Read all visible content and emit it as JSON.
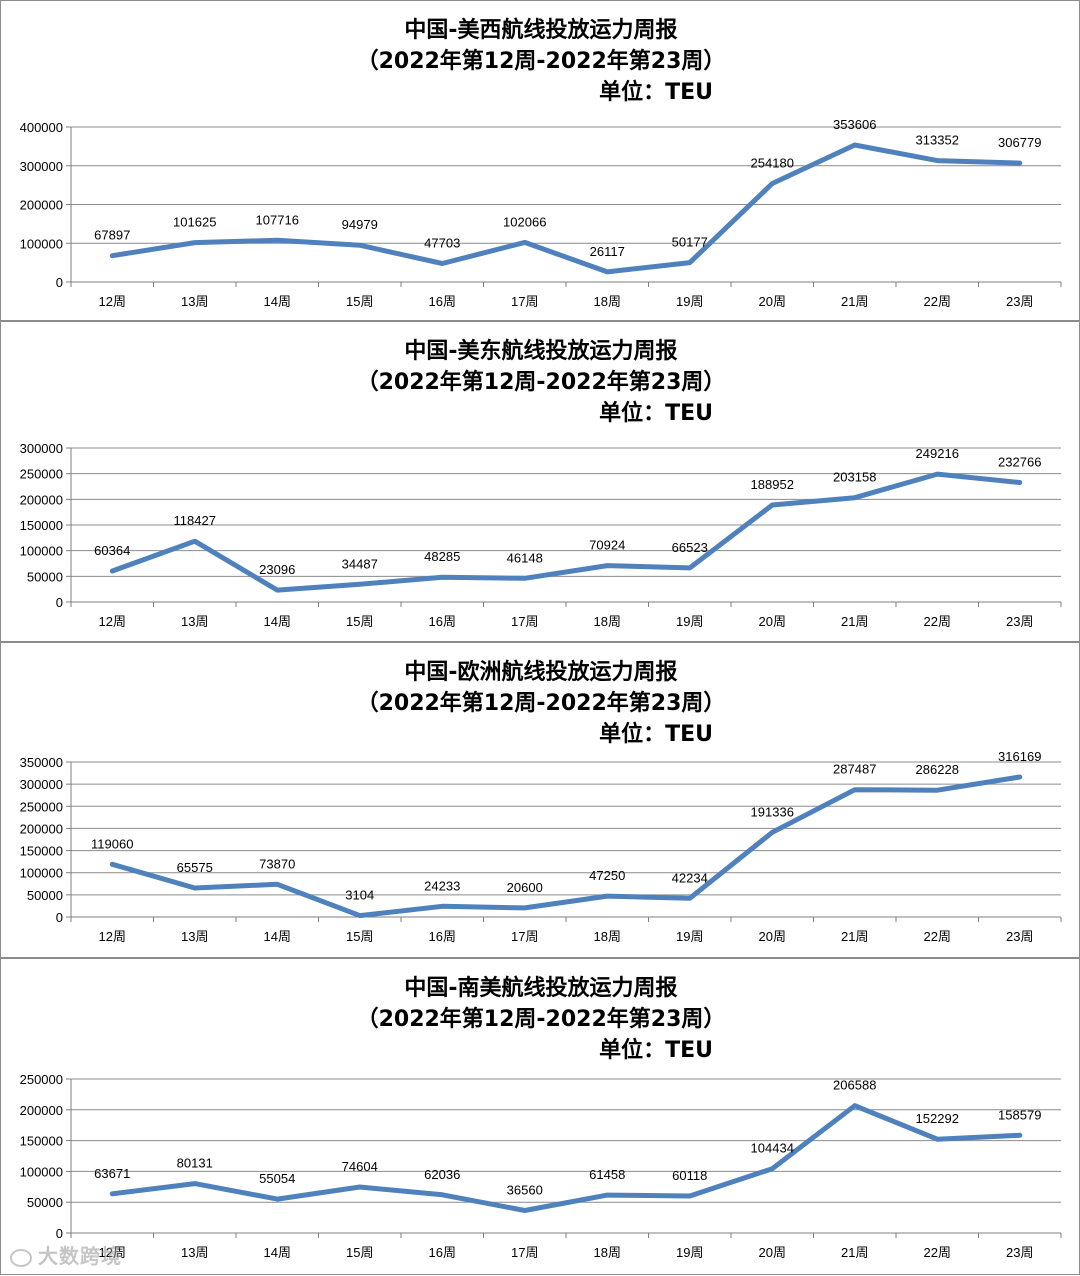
{
  "watermark": "大数跨境",
  "chart_data": [
    {
      "type": "line",
      "title": "中国-美西航线投放运力周报",
      "subtitle": "（2022年第12周-2022年第23周）",
      "unit": "单位：TEU",
      "categories": [
        "12周",
        "13周",
        "14周",
        "15周",
        "16周",
        "17周",
        "18周",
        "19周",
        "20周",
        "21周",
        "22周",
        "23周"
      ],
      "values": [
        67897,
        101625,
        107716,
        94979,
        47703,
        102066,
        26117,
        50177,
        254180,
        353606,
        313352,
        306779
      ],
      "yticks": [
        0,
        100000,
        200000,
        300000,
        400000
      ],
      "ylim": [
        0,
        400000
      ],
      "grid": true,
      "line_color": "#4f81bd"
    },
    {
      "type": "line",
      "title": "中国-美东航线投放运力周报",
      "subtitle": "（2022年第12周-2022年第23周）",
      "unit": "单位：TEU",
      "categories": [
        "12周",
        "13周",
        "14周",
        "15周",
        "16周",
        "17周",
        "18周",
        "19周",
        "20周",
        "21周",
        "22周",
        "23周"
      ],
      "values": [
        60364,
        118427,
        23096,
        34487,
        48285,
        46148,
        70924,
        66523,
        188952,
        203158,
        249216,
        232766
      ],
      "yticks": [
        0,
        50000,
        100000,
        150000,
        200000,
        250000,
        300000
      ],
      "ylim": [
        0,
        300000
      ],
      "grid": true,
      "line_color": "#4f81bd"
    },
    {
      "type": "line",
      "title": "中国-欧洲航线投放运力周报",
      "subtitle": "（2022年第12周-2022年第23周）",
      "unit": "单位：TEU",
      "categories": [
        "12周",
        "13周",
        "14周",
        "15周",
        "16周",
        "17周",
        "18周",
        "19周",
        "20周",
        "21周",
        "22周",
        "23周"
      ],
      "values": [
        119060,
        65575,
        73870,
        3104,
        24233,
        20600,
        47250,
        42234,
        191336,
        287487,
        286228,
        316169
      ],
      "yticks": [
        0,
        50000,
        100000,
        150000,
        200000,
        250000,
        300000,
        350000
      ],
      "ylim": [
        0,
        350000
      ],
      "grid": true,
      "line_color": "#4f81bd"
    },
    {
      "type": "line",
      "title": "中国-南美航线投放运力周报",
      "subtitle": "（2022年第12周-2022年第23周）",
      "unit": "单位：TEU",
      "categories": [
        "12周",
        "13周",
        "14周",
        "15周",
        "16周",
        "17周",
        "18周",
        "19周",
        "20周",
        "21周",
        "22周",
        "23周"
      ],
      "values": [
        63671,
        80131,
        55054,
        74604,
        62036,
        36560,
        61458,
        60118,
        104434,
        206588,
        152292,
        158579
      ],
      "yticks": [
        0,
        50000,
        100000,
        150000,
        200000,
        250000
      ],
      "ylim": [
        0,
        250000
      ],
      "grid": true,
      "line_color": "#4f81bd"
    }
  ]
}
